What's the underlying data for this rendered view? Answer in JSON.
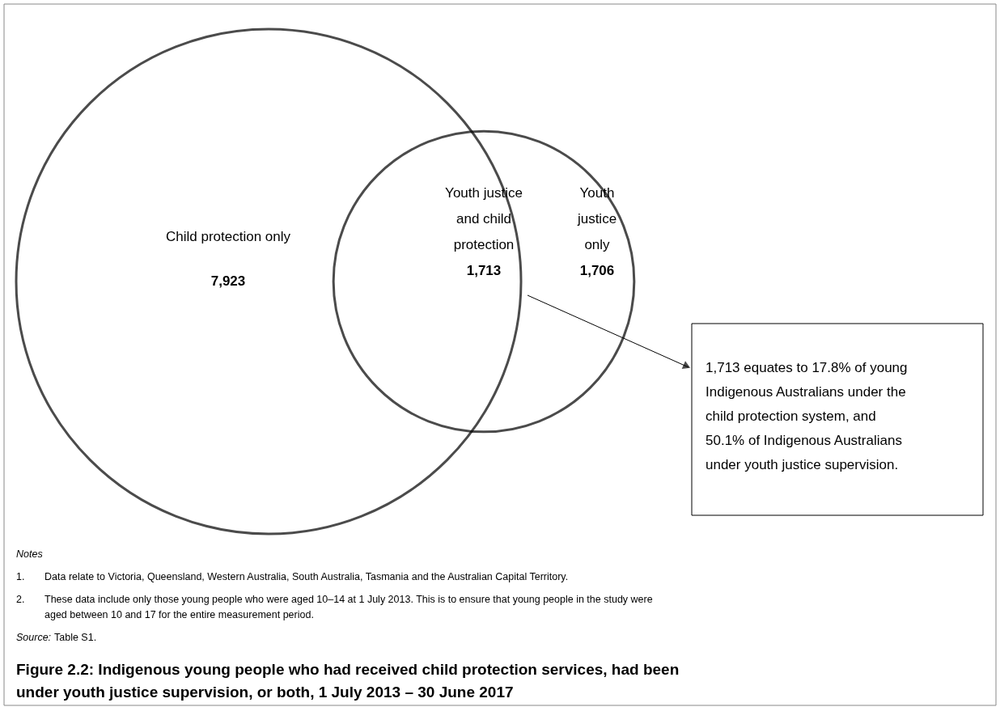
{
  "chart_data": {
    "type": "other",
    "title": "Figure 2.2: Indigenous young people who had received child protection services, had been under youth justice supervision, or both, 1 July 2013 – 30 June 2017",
    "categories": [
      "Child protection only",
      "Youth justice and child protection",
      "Youth justice only"
    ],
    "values": [
      7923,
      1713,
      1706
    ],
    "value_labels": [
      "7,923",
      "1,713",
      "1,706"
    ],
    "annotations": [
      "1,713 equates to 17.8% of young Indigenous Australians under the child protection system, and 50.1% of Indigenous Australians under youth justice supervision.",
      "Notes",
      "1. Data relate to Victoria, Queensland, Western Australia, South Australia, Tasmania and the Australian Capital Territory.",
      "2. These data include only those young people who were aged 10–14 at 1 July 2013. This is to ensure that young people in the study were aged between 10 and 17 for the entire measurement period.",
      "Source: Table S1."
    ]
  }
}
